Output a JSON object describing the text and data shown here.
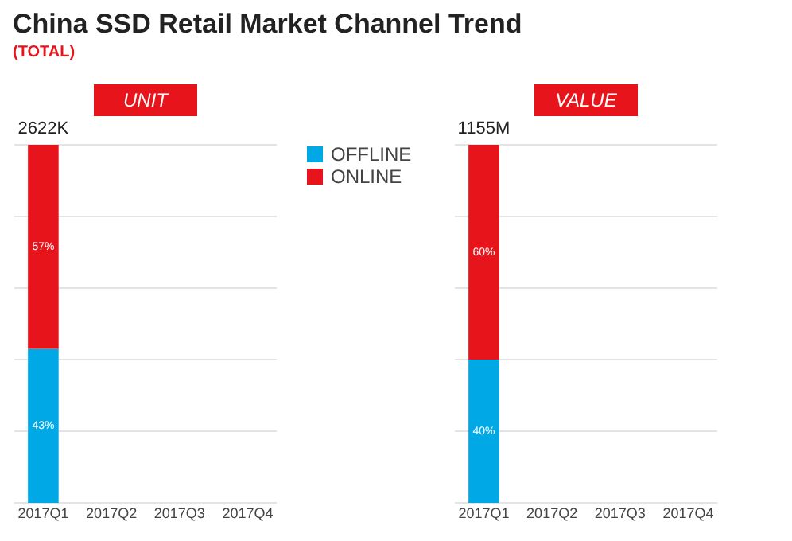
{
  "chart_data": [
    {
      "type": "bar",
      "title": "China SSD Retail Market Channel Trend",
      "subtitle": "(TOTAL)",
      "annotations": [
        "UNIT",
        {
          "text": "2622K",
          "x": "2017Q1",
          "y": 100
        }
      ],
      "categories": [
        "2017Q1",
        "2017Q2",
        "2017Q3",
        "2017Q4"
      ],
      "stacked": true,
      "series": [
        {
          "name": "OFFLINE",
          "color": "#00a9e6",
          "values": [
            43,
            null,
            null,
            null
          ],
          "value_labels": [
            "43%",
            null,
            null,
            null
          ]
        },
        {
          "name": "ONLINE",
          "color": "#e8141b",
          "values": [
            57,
            null,
            null,
            null
          ],
          "value_labels": [
            "57%",
            null,
            null,
            null
          ]
        }
      ],
      "ylim": [
        0,
        100
      ],
      "yticks": [
        {
          "value": 0,
          "label": null
        },
        {
          "value": 20,
          "label": null
        },
        {
          "value": 40,
          "label": null
        },
        {
          "value": 60,
          "label": null
        },
        {
          "value": 80,
          "label": null
        },
        {
          "value": 100,
          "label": null
        }
      ],
      "grid": "y",
      "tick_labels": "x",
      "legend": "right"
    },
    {
      "type": "bar",
      "annotations": [
        "VALUE",
        {
          "text": "1155M",
          "x": "2017Q1",
          "y": 100
        }
      ],
      "categories": [
        "2017Q1",
        "2017Q2",
        "2017Q3",
        "2017Q4"
      ],
      "stacked": true,
      "series": [
        {
          "color": "#00a9e6",
          "values": [
            40,
            null,
            null,
            null
          ],
          "value_labels": [
            "40%",
            null,
            null,
            null
          ]
        },
        {
          "color": "#e8141b",
          "values": [
            60,
            null,
            null,
            null
          ],
          "value_labels": [
            "60%",
            null,
            null,
            null
          ]
        }
      ],
      "ylim": [
        0,
        100
      ],
      "yticks": [
        {
          "value": 0,
          "label": null
        },
        {
          "value": 20,
          "label": null
        },
        {
          "value": 40,
          "label": null
        },
        {
          "value": 60,
          "label": null
        },
        {
          "value": 80,
          "label": null
        },
        {
          "value": 100,
          "label": null
        }
      ],
      "grid": "y",
      "tick_labels": "x"
    }
  ]
}
